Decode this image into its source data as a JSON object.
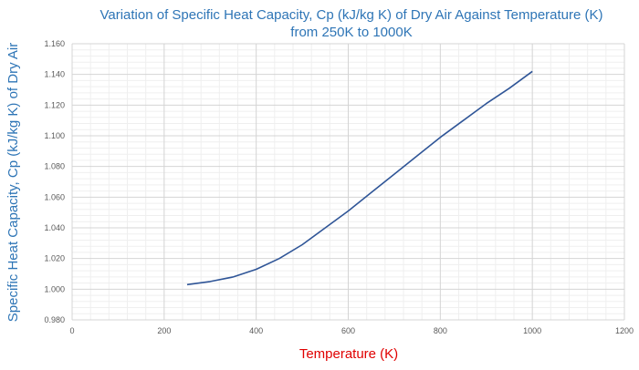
{
  "chart_data": {
    "type": "line",
    "title": "Variation of Specific Heat Capacity, Cp (kJ/kg K) of Dry Air Against Temperature (K)",
    "subtitle": "from 250K to 1000K",
    "xlabel": "Temperature (K)",
    "ylabel": "Specific Heat Capacity, Cp (kJ/kg K) of Dry Air",
    "xlim": [
      0,
      1200
    ],
    "ylim": [
      0.98,
      1.16
    ],
    "xticks": [
      0,
      200,
      400,
      600,
      800,
      1000,
      1200
    ],
    "yticks": [
      "0.980",
      "1.000",
      "1.020",
      "1.040",
      "1.060",
      "1.080",
      "1.100",
      "1.120",
      "1.140",
      "1.160"
    ],
    "grid": true,
    "legend": "none",
    "series": [
      {
        "color": "#2f5597",
        "x": [
          250,
          300,
          350,
          400,
          450,
          500,
          550,
          600,
          650,
          700,
          750,
          800,
          850,
          900,
          950,
          1000
        ],
        "y": [
          1.003,
          1.005,
          1.008,
          1.013,
          1.02,
          1.029,
          1.04,
          1.051,
          1.063,
          1.075,
          1.087,
          1.099,
          1.11,
          1.121,
          1.131,
          1.142
        ]
      }
    ]
  }
}
